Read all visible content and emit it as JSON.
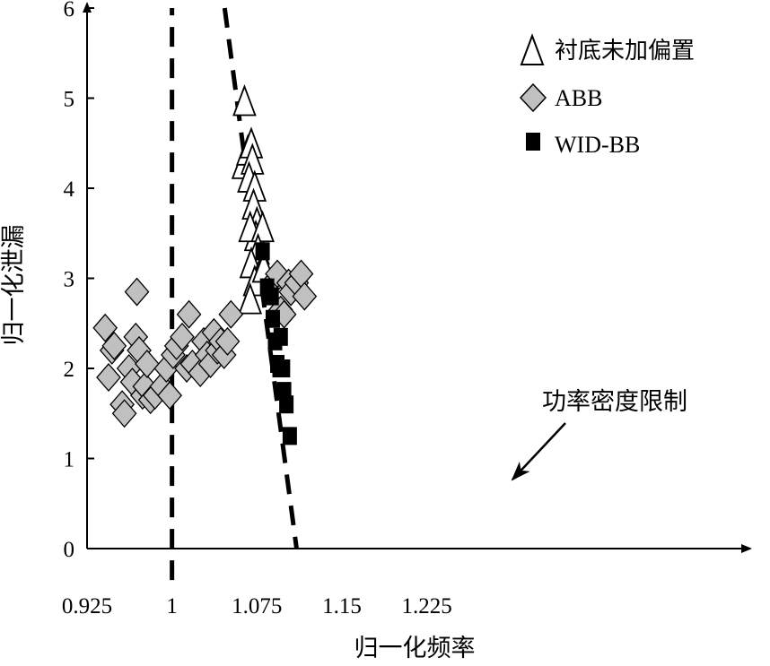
{
  "chart_data": {
    "type": "scatter",
    "title": "",
    "xlabel": "归一化频率",
    "ylabel": "归一化泄漏",
    "xlim": [
      0.925,
      1.225
    ],
    "ylim": [
      0,
      6
    ],
    "x_ticks": [
      "0.925",
      "1",
      "1.075",
      "1.15",
      "1.225"
    ],
    "y_ticks": [
      "0",
      "1",
      "2",
      "3",
      "4",
      "5",
      "6"
    ],
    "grid": false,
    "legend_position": "top-right",
    "series": [
      {
        "name": "衬底未加偏置",
        "marker": "triangle-open",
        "points": [
          [
            1.064,
            4.95
          ],
          [
            1.063,
            4.25
          ],
          [
            1.067,
            4.4
          ],
          [
            1.07,
            4.48
          ],
          [
            1.071,
            4.3
          ],
          [
            1.068,
            4.1
          ],
          [
            1.073,
            4.0
          ],
          [
            1.072,
            3.8
          ],
          [
            1.075,
            3.6
          ],
          [
            1.074,
            3.45
          ],
          [
            1.069,
            3.55
          ],
          [
            1.08,
            3.55
          ],
          [
            1.076,
            3.3
          ],
          [
            1.07,
            3.15
          ],
          [
            1.078,
            3.05
          ],
          [
            1.073,
            2.95
          ],
          [
            1.069,
            2.75
          ],
          [
            1.081,
            3.1
          ]
        ]
      },
      {
        "name": "ABB",
        "marker": "diamond",
        "points": [
          [
            0.941,
            2.45
          ],
          [
            0.944,
            1.9
          ],
          [
            0.947,
            2.2
          ],
          [
            0.949,
            2.25
          ],
          [
            0.956,
            1.6
          ],
          [
            0.958,
            1.5
          ],
          [
            0.962,
            2.0
          ],
          [
            0.965,
            1.85
          ],
          [
            0.968,
            2.35
          ],
          [
            0.969,
            2.85
          ],
          [
            0.971,
            2.2
          ],
          [
            0.974,
            1.7
          ],
          [
            0.976,
            1.8
          ],
          [
            0.978,
            2.05
          ],
          [
            0.981,
            1.65
          ],
          [
            0.985,
            1.7
          ],
          [
            0.991,
            1.8
          ],
          [
            0.995,
            2.0
          ],
          [
            0.998,
            1.7
          ],
          [
            1.001,
            2.15
          ],
          [
            1.004,
            2.25
          ],
          [
            1.009,
            2.35
          ],
          [
            1.015,
            2.6
          ],
          [
            1.013,
            2.0
          ],
          [
            1.018,
            2.05
          ],
          [
            1.025,
            1.95
          ],
          [
            1.028,
            2.3
          ],
          [
            1.031,
            2.15
          ],
          [
            1.034,
            2.05
          ],
          [
            1.037,
            2.4
          ],
          [
            1.04,
            2.2
          ],
          [
            1.043,
            2.3
          ],
          [
            1.046,
            2.15
          ],
          [
            1.049,
            2.3
          ],
          [
            1.052,
            2.6
          ],
          [
            1.089,
            2.95
          ],
          [
            1.093,
            3.05
          ],
          [
            1.096,
            2.65
          ],
          [
            1.099,
            2.6
          ],
          [
            1.103,
            2.95
          ],
          [
            1.105,
            2.85
          ],
          [
            1.11,
            2.95
          ],
          [
            1.114,
            3.05
          ],
          [
            1.117,
            2.8
          ]
        ]
      },
      {
        "name": "WID-BB",
        "marker": "square",
        "points": [
          [
            1.08,
            3.3
          ],
          [
            1.084,
            2.9
          ],
          [
            1.088,
            2.8
          ],
          [
            1.089,
            2.55
          ],
          [
            1.091,
            2.3
          ],
          [
            1.093,
            2.05
          ],
          [
            1.095,
            2.0
          ],
          [
            1.096,
            2.35
          ],
          [
            1.098,
            2.0
          ],
          [
            1.099,
            1.75
          ],
          [
            1.101,
            1.6
          ],
          [
            1.104,
            1.25
          ]
        ]
      }
    ],
    "annotations": [
      {
        "text": "功率密度限制"
      }
    ],
    "reference_lines": [
      {
        "style": "dashed",
        "from": [
          1.0,
          -0.35
        ],
        "to": [
          1.0,
          6.0
        ]
      },
      {
        "style": "dashed",
        "from": [
          1.0465,
          6.0
        ],
        "to": [
          1.11,
          0.0
        ]
      }
    ]
  }
}
